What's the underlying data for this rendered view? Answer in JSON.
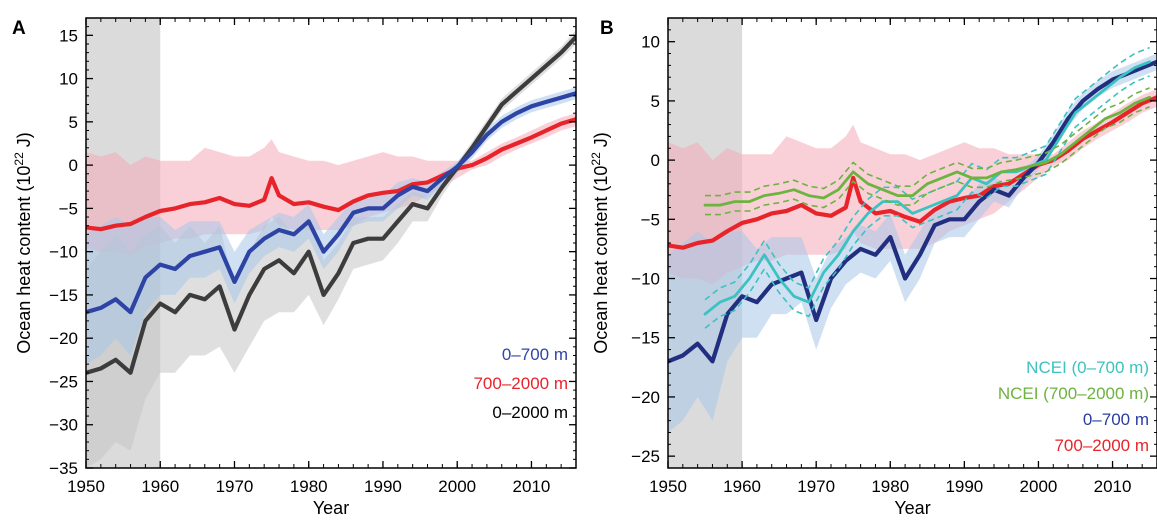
{
  "chart_data": [
    {
      "panel": "A",
      "type": "line",
      "xlabel": "Year",
      "ylabel": "Ocean heat content (10²² J)",
      "ylabel_prefix": "Ocean heat content (10",
      "ylabel_exp": "22",
      "ylabel_suffix": " J)",
      "xlim": [
        1950,
        2016
      ],
      "ylim": [
        -35,
        17
      ],
      "xticks": [
        1950,
        1960,
        1970,
        1980,
        1990,
        2000,
        2010
      ],
      "yticks": [
        -35,
        -30,
        -25,
        -20,
        -15,
        -10,
        -5,
        0,
        5,
        10,
        15
      ],
      "shaded_period": [
        1950,
        1960
      ],
      "legend_position": "bottom-right",
      "series": [
        {
          "name": "700–2000 m",
          "color": "#e8242b",
          "band_color": "#f4a9b7",
          "x": [
            1950,
            1952,
            1954,
            1956,
            1958,
            1960,
            1962,
            1964,
            1966,
            1968,
            1970,
            1972,
            1974,
            1975,
            1976,
            1978,
            1980,
            1982,
            1984,
            1986,
            1988,
            1990,
            1992,
            1994,
            1996,
            1998,
            2000,
            2002,
            2004,
            2006,
            2008,
            2010,
            2012,
            2014,
            2016
          ],
          "y": [
            -7.2,
            -7.4,
            -7,
            -6.8,
            -6,
            -5.3,
            -5,
            -4.5,
            -4.3,
            -3.8,
            -4.5,
            -4.7,
            -4,
            -1.5,
            -3.5,
            -4.5,
            -4.3,
            -4.8,
            -5.2,
            -4.2,
            -3.5,
            -3.2,
            -3,
            -2.2,
            -2,
            -1.2,
            -0.4,
            0,
            0.8,
            1.8,
            2.5,
            3.2,
            4,
            4.8,
            5.3
          ],
          "band_lower": [
            -9.5,
            -10,
            -10,
            -10.5,
            -9.5,
            -9,
            -8.5,
            -8.5,
            -8,
            -8,
            -8,
            -8,
            -7.5,
            -6,
            -7,
            -7.5,
            -7.5,
            -7.5,
            -7.5,
            -7,
            -6,
            -5.5,
            -5,
            -4.5,
            -3.5,
            -2.5,
            -1.5,
            -0.5,
            0,
            1,
            1.8,
            2.5,
            3.2,
            4,
            4.5
          ],
          "band_upper": [
            1.5,
            1,
            1.5,
            0,
            1,
            0.5,
            0.5,
            0.5,
            2,
            1.5,
            1,
            1,
            2,
            3,
            1.5,
            1,
            0.5,
            0.5,
            0,
            0.5,
            1,
            1.5,
            1,
            1,
            0.5,
            0.5,
            0.5,
            0.5,
            1.5,
            2.5,
            3.2,
            4,
            4.8,
            5.5,
            6
          ]
        },
        {
          "name": "0–2000 m",
          "color": "#3c3c3c",
          "band_color": "#c4c4c4",
          "x": [
            1950,
            1952,
            1954,
            1956,
            1958,
            1960,
            1962,
            1964,
            1966,
            1968,
            1970,
            1972,
            1974,
            1976,
            1978,
            1980,
            1982,
            1984,
            1986,
            1988,
            1990,
            1992,
            1994,
            1996,
            1998,
            2000,
            2002,
            2004,
            2006,
            2008,
            2010,
            2012,
            2014,
            2016
          ],
          "y": [
            -24,
            -23.5,
            -22.5,
            -24,
            -18,
            -16,
            -17,
            -15,
            -15.5,
            -14,
            -19,
            -15,
            -12,
            -11,
            -12.5,
            -10,
            -15,
            -12.5,
            -9,
            -8.5,
            -8.5,
            -6.5,
            -4.5,
            -5,
            -2.5,
            -0.3,
            2,
            4.5,
            7,
            8.5,
            10,
            11.5,
            13,
            14.8
          ],
          "band_lower": [
            -35,
            -34,
            -32,
            -33,
            -27,
            -24,
            -24,
            -22,
            -22,
            -21,
            -24,
            -21,
            -18,
            -17,
            -17,
            -15,
            -18.5,
            -15.5,
            -12,
            -11.5,
            -11,
            -9,
            -6.5,
            -6.5,
            -3.5,
            -1,
            1.3,
            3.8,
            6.3,
            7.8,
            9.3,
            10.8,
            12.3,
            14
          ],
          "band_upper": [
            -12,
            -10,
            -8,
            -10,
            -8,
            -7,
            -9,
            -7,
            -9,
            -7,
            -14,
            -10,
            -7,
            -6,
            -8,
            -6,
            -11,
            -9,
            -6,
            -6,
            -6,
            -4.5,
            -3,
            -3.5,
            -1.5,
            0.3,
            2.7,
            5.2,
            7.7,
            9.2,
            10.7,
            12.2,
            13.7,
            15.6
          ]
        },
        {
          "name": "0–700 m",
          "color": "#2e44a5",
          "band_color": "#a7c6ea",
          "x": [
            1950,
            1952,
            1954,
            1956,
            1958,
            1960,
            1962,
            1964,
            1966,
            1968,
            1970,
            1972,
            1974,
            1976,
            1978,
            1980,
            1982,
            1984,
            1986,
            1988,
            1990,
            1992,
            1994,
            1996,
            1998,
            2000,
            2002,
            2004,
            2006,
            2008,
            2010,
            2012,
            2014,
            2016
          ],
          "y": [
            -17,
            -16.5,
            -15.5,
            -17,
            -13,
            -11.5,
            -12,
            -10.5,
            -10,
            -9.5,
            -13.5,
            -10,
            -8.5,
            -7.5,
            -8,
            -6.5,
            -10,
            -8,
            -5.5,
            -5,
            -5,
            -3.5,
            -2.5,
            -3,
            -1.5,
            -0.2,
            1.5,
            3.5,
            5,
            6,
            6.8,
            7.3,
            7.8,
            8.3
          ],
          "band_lower": [
            -23,
            -22,
            -20,
            -22,
            -17,
            -15,
            -15,
            -13,
            -13,
            -12,
            -16,
            -12.5,
            -10.5,
            -9.5,
            -10,
            -8.5,
            -12,
            -10,
            -7,
            -6.5,
            -6.5,
            -5,
            -3.5,
            -4,
            -2.2,
            -0.8,
            0.8,
            2.8,
            4.3,
            5.3,
            6.1,
            6.6,
            7.1,
            7.6
          ],
          "band_upper": [
            -8,
            -7,
            -6,
            -7,
            -6,
            -6,
            -7.5,
            -6.5,
            -6.5,
            -6.5,
            -10,
            -7.5,
            -6.5,
            -5.5,
            -6,
            -4.5,
            -8,
            -6,
            -4,
            -3.5,
            -3.5,
            -2,
            -1.5,
            -2,
            -0.8,
            0.4,
            2.2,
            4.2,
            5.7,
            6.7,
            7.5,
            8,
            8.5,
            9
          ]
        }
      ],
      "legend": [
        {
          "label": "0–700 m",
          "color": "#3245a8"
        },
        {
          "label": "700–2000 m",
          "color": "#e8242b"
        },
        {
          "label": "0–2000 m",
          "color": "#000000"
        }
      ]
    },
    {
      "panel": "B",
      "type": "line",
      "xlabel": "Year",
      "ylabel": "Ocean heat content (10²² J)",
      "ylabel_prefix": "Ocean heat content (10",
      "ylabel_exp": "22",
      "ylabel_suffix": " J)",
      "xlim": [
        1950,
        2016
      ],
      "ylim": [
        -26,
        12
      ],
      "xticks": [
        1950,
        1960,
        1970,
        1980,
        1990,
        2000,
        2010
      ],
      "yticks": [
        -25,
        -20,
        -15,
        -10,
        -5,
        0,
        5,
        10
      ],
      "shaded_period": [
        1950,
        1960
      ],
      "legend_position": "bottom-right",
      "series": [
        {
          "name": "700–2000 m",
          "color": "#e8242b",
          "band_color": "#f4a9b7",
          "x": [
            1950,
            1952,
            1954,
            1956,
            1958,
            1960,
            1962,
            1964,
            1966,
            1968,
            1970,
            1972,
            1974,
            1975,
            1976,
            1978,
            1980,
            1982,
            1984,
            1986,
            1988,
            1990,
            1992,
            1994,
            1996,
            1998,
            2000,
            2002,
            2004,
            2006,
            2008,
            2010,
            2012,
            2014,
            2016
          ],
          "y": [
            -7.2,
            -7.4,
            -7,
            -6.8,
            -6,
            -5.3,
            -5,
            -4.5,
            -4.3,
            -3.8,
            -4.5,
            -4.7,
            -4,
            -1.5,
            -3.5,
            -4.5,
            -4.3,
            -4.8,
            -5.2,
            -4.2,
            -3.5,
            -3.2,
            -3,
            -2.2,
            -2,
            -1.2,
            -0.4,
            0,
            0.8,
            1.8,
            2.5,
            3.2,
            4,
            4.8,
            5.3
          ],
          "band_lower": [
            -9.5,
            -10,
            -10,
            -10.5,
            -9.5,
            -9,
            -8.5,
            -8.5,
            -8,
            -8,
            -8,
            -8,
            -7.5,
            -6,
            -7,
            -7.5,
            -7.5,
            -7.5,
            -7.5,
            -7,
            -6,
            -5.5,
            -5,
            -4.5,
            -3.5,
            -2.5,
            -1.5,
            -0.5,
            0,
            1,
            1.8,
            2.5,
            3.2,
            4,
            4.5
          ],
          "band_upper": [
            1.5,
            1,
            1.5,
            0,
            1,
            0.5,
            0.5,
            0.5,
            2,
            1.5,
            1,
            1,
            2,
            3,
            1.5,
            1,
            0.5,
            0.5,
            0,
            0.5,
            1,
            1.5,
            1,
            1,
            0.5,
            0.5,
            0.5,
            0.5,
            1.5,
            2.5,
            3.2,
            4,
            4.8,
            5.5,
            6
          ]
        },
        {
          "name": "0–700 m",
          "color": "#222f80",
          "band_color": "#a7c6ea",
          "x": [
            1950,
            1952,
            1954,
            1956,
            1958,
            1960,
            1962,
            1964,
            1966,
            1968,
            1970,
            1972,
            1974,
            1976,
            1978,
            1980,
            1982,
            1984,
            1986,
            1988,
            1990,
            1992,
            1994,
            1996,
            1998,
            2000,
            2002,
            2004,
            2006,
            2008,
            2010,
            2012,
            2014,
            2016
          ],
          "y": [
            -17,
            -16.5,
            -15.5,
            -17,
            -13,
            -11.5,
            -12,
            -10.5,
            -10,
            -9.5,
            -13.5,
            -10,
            -8.5,
            -7.5,
            -8,
            -6.5,
            -10,
            -8,
            -5.5,
            -5,
            -5,
            -3.5,
            -2.5,
            -3,
            -1.5,
            -0.2,
            1.5,
            3.5,
            5,
            6,
            6.8,
            7.3,
            7.8,
            8.3
          ],
          "band_lower": [
            -23,
            -22,
            -20,
            -22,
            -17,
            -15,
            -15,
            -13,
            -13,
            -12,
            -16,
            -12.5,
            -10.5,
            -9.5,
            -10,
            -8.5,
            -12,
            -10,
            -7,
            -6.5,
            -6.5,
            -5,
            -3.5,
            -4,
            -2.2,
            -0.8,
            0.8,
            2.8,
            4.3,
            5.3,
            6.1,
            6.6,
            7.1,
            7.6
          ],
          "band_upper": [
            -8,
            -7,
            -6,
            -7,
            -6,
            -6,
            -7.5,
            -6.5,
            -6.5,
            -6.5,
            -10,
            -7.5,
            -6.5,
            -5.5,
            -6,
            -4.5,
            -8,
            -6,
            -4,
            -3.5,
            -3.5,
            -2,
            -1.5,
            -2,
            -0.8,
            0.4,
            2.2,
            4.2,
            5.7,
            6.7,
            7.5,
            8,
            8.5,
            9
          ]
        },
        {
          "name": "NCEI (0–700 m)",
          "color": "#3cc2c0",
          "dashed_offset": 1.2,
          "x": [
            1955,
            1957,
            1959,
            1961,
            1963,
            1965,
            1967,
            1969,
            1971,
            1973,
            1975,
            1977,
            1979,
            1981,
            1983,
            1985,
            1987,
            1989,
            1991,
            1993,
            1995,
            1997,
            1999,
            2001,
            2003,
            2005,
            2007,
            2009,
            2011,
            2013,
            2015
          ],
          "y": [
            -13,
            -12,
            -11.5,
            -10,
            -8,
            -10,
            -11.5,
            -12,
            -9.5,
            -8,
            -6,
            -4.5,
            -3.5,
            -3.5,
            -4.5,
            -4,
            -3.5,
            -3,
            -1.5,
            -2,
            -1,
            -1,
            -0.5,
            0,
            2,
            4,
            5,
            6,
            7,
            7.8,
            8.3
          ]
        },
        {
          "name": "NCEI (700–2000 m)",
          "color": "#6db33f",
          "dashed_offset": 0.8,
          "x": [
            1955,
            1957,
            1959,
            1961,
            1963,
            1965,
            1967,
            1969,
            1971,
            1973,
            1975,
            1977,
            1979,
            1981,
            1983,
            1985,
            1987,
            1989,
            1991,
            1993,
            1995,
            1997,
            1999,
            2001,
            2003,
            2005,
            2007,
            2009,
            2011,
            2013,
            2015
          ],
          "y": [
            -3.8,
            -3.8,
            -3.5,
            -3.5,
            -3,
            -2.8,
            -2.5,
            -3,
            -3.2,
            -2.5,
            -1,
            -2,
            -2.5,
            -3,
            -3,
            -2,
            -1.5,
            -1,
            -1.5,
            -1.5,
            -1,
            -0.8,
            -0.5,
            -0.2,
            0.5,
            1.5,
            2.5,
            3.5,
            4,
            4.8,
            5.3
          ]
        }
      ],
      "legend": [
        {
          "label": "NCEI (0–700 m)",
          "color": "#3cc2c0"
        },
        {
          "label": "NCEI (700–2000 m)",
          "color": "#6db33f"
        },
        {
          "label": "0–700 m",
          "color": "#2c3ca0"
        },
        {
          "label": "700–2000 m",
          "color": "#e8242b"
        }
      ]
    }
  ]
}
